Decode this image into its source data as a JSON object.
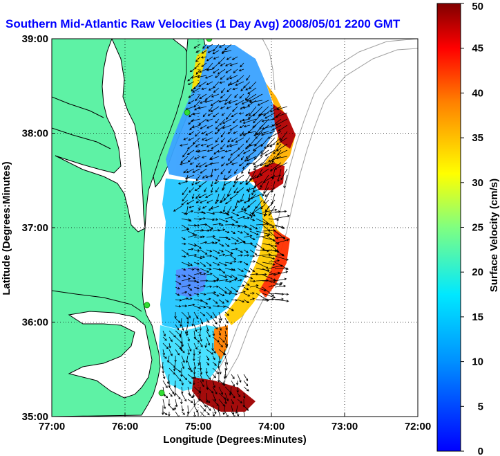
{
  "chart_data": {
    "type": "heatmap",
    "title": "Southern Mid-Atlantic Raw Velocities (1 Day Avg) 2008/05/01 2200 GMT",
    "xlabel": "Longitude (Degrees:Minutes)",
    "ylabel": "Latitude (Degrees:Minutes)",
    "xlim": [
      -77,
      -72
    ],
    "ylim": [
      35,
      39
    ],
    "x_ticks": [
      {
        "value": -77,
        "label": "77:00"
      },
      {
        "value": -76,
        "label": "76:00"
      },
      {
        "value": -75,
        "label": "75:00"
      },
      {
        "value": -74,
        "label": "74:00"
      },
      {
        "value": -73,
        "label": "73:00"
      },
      {
        "value": -72,
        "label": "72:00"
      }
    ],
    "y_ticks": [
      {
        "value": 35,
        "label": "35:00"
      },
      {
        "value": 36,
        "label": "36:00"
      },
      {
        "value": 37,
        "label": "37:00"
      },
      {
        "value": 38,
        "label": "38:00"
      },
      {
        "value": 39,
        "label": "39:00"
      }
    ],
    "grid": true,
    "colorbar": {
      "label": "Surface Velocity (cm/s)",
      "range": [
        0,
        50
      ],
      "ticks": [
        {
          "value": 0,
          "label": "0"
        },
        {
          "value": 5,
          "label": "5"
        },
        {
          "value": 10,
          "label": "10"
        },
        {
          "value": 15,
          "label": "15"
        },
        {
          "value": 20,
          "label": "20"
        },
        {
          "value": 25,
          "label": "25"
        },
        {
          "value": 30,
          "label": "30"
        },
        {
          "value": 35,
          "label": "35"
        },
        {
          "value": 40,
          "label": "40"
        },
        {
          "value": 45,
          "label": "45"
        },
        {
          "value": 50,
          "label": "50"
        }
      ]
    },
    "colors": {
      "land": "#5ef2a5",
      "title": "#0000ff",
      "coast": "#000000",
      "bathymetry": "#a0a0a0",
      "stations": "#33dd33"
    },
    "stations": [
      {
        "lon": -74.85,
        "lat": 39.0
      },
      {
        "lon": -75.15,
        "lat": 38.22
      },
      {
        "lon": -75.7,
        "lat": 36.18
      },
      {
        "lon": -75.5,
        "lat": 35.25
      }
    ],
    "data_extent": {
      "lon": [
        -75.7,
        -73.8
      ],
      "lat": [
        35.1,
        38.95
      ],
      "approx_speed_range_cm_s": [
        3,
        50
      ]
    }
  }
}
